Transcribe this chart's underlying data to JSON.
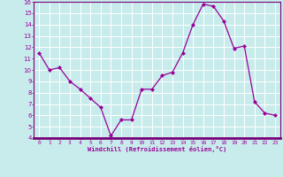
{
  "x": [
    0,
    1,
    2,
    3,
    4,
    5,
    6,
    7,
    8,
    9,
    10,
    11,
    12,
    13,
    14,
    15,
    16,
    17,
    18,
    19,
    20,
    21,
    22,
    23
  ],
  "y": [
    11.5,
    10.0,
    10.2,
    9.0,
    8.3,
    7.5,
    6.7,
    4.2,
    5.6,
    5.6,
    8.3,
    8.3,
    9.5,
    9.8,
    11.5,
    14.0,
    15.8,
    15.6,
    14.3,
    11.9,
    12.1,
    7.2,
    6.2,
    6.0
  ],
  "line_color": "#990099",
  "marker_color": "#990099",
  "bg_color": "#c8ecec",
  "grid_color": "#ffffff",
  "axis_label_color": "#990099",
  "tick_color": "#990099",
  "spine_color": "#770077",
  "xlabel": "Windchill (Refroidissement éolien,°C)",
  "ylim": [
    4,
    16
  ],
  "xlim": [
    -0.5,
    23.5
  ],
  "yticks": [
    4,
    5,
    6,
    7,
    8,
    9,
    10,
    11,
    12,
    13,
    14,
    15,
    16
  ],
  "xticks": [
    0,
    1,
    2,
    3,
    4,
    5,
    6,
    7,
    8,
    9,
    10,
    11,
    12,
    13,
    14,
    15,
    16,
    17,
    18,
    19,
    20,
    21,
    22,
    23
  ]
}
